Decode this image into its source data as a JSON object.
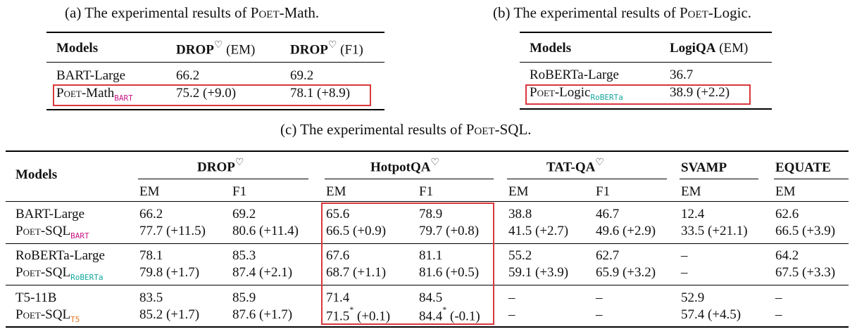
{
  "colors": {
    "highlight_box": "#d9373c",
    "bart_sub": "#c71585",
    "roberta_sub": "#12a79d",
    "t5_sub": "#e87722"
  },
  "caption_a": {
    "prefix": "(a) The experimental results of ",
    "poet": "Poet",
    "suffix": "-Math."
  },
  "caption_b": {
    "prefix": "(b) The experimental results of ",
    "poet": "Poet",
    "suffix": "-Logic."
  },
  "caption_c": {
    "prefix": "(c) The experimental results of ",
    "poet": "Poet",
    "suffix": "-SQL."
  },
  "heart": "♡",
  "table_a": {
    "h_models": "Models",
    "h_drop": "DROP",
    "h_em": " (EM)",
    "h_f1": " (F1)",
    "rows": [
      {
        "model": "BART-Large",
        "em": "66.2",
        "f1": "69.2"
      },
      {
        "poet": "Poet",
        "name": "-Math",
        "sub": "BART",
        "em": "75.2 (+9.0)",
        "f1": "78.1 (+8.9)"
      }
    ]
  },
  "table_b": {
    "h_models": "Models",
    "h_logiqa": "LogiQA",
    "h_em": " (EM)",
    "rows": [
      {
        "model": "RoBERTa-Large",
        "em": "36.7"
      },
      {
        "poet": "Poet",
        "name": "-Logic",
        "sub": "RoBERTa",
        "em": "38.9 (+2.2)"
      }
    ]
  },
  "table_c": {
    "h_models": "Models",
    "groups": [
      "DROP",
      "HotpotQA",
      "TAT-QA",
      "SVAMP",
      "EQUATE"
    ],
    "sub_em": "EM",
    "sub_f1": "F1",
    "poet": "Poet",
    "name": "-SQL",
    "blocks": [
      {
        "base": "BART-Large",
        "sub": "BART",
        "base_vals": [
          "66.2",
          "69.2",
          "65.6",
          "78.9",
          "38.8",
          "46.7",
          "12.4",
          "62.6"
        ],
        "poet_vals": [
          "77.7 (+11.5)",
          "80.6 (+11.4)",
          "66.5 (+0.9)",
          "79.7 (+0.8)",
          "41.5 (+2.7)",
          "49.6 (+2.9)",
          "33.5 (+21.1)",
          "66.5 (+3.9)"
        ]
      },
      {
        "base": "RoBERTa-Large",
        "sub": "RoBERTa",
        "base_vals": [
          "78.1",
          "85.3",
          "67.6",
          "81.1",
          "55.2",
          "62.7",
          "–",
          "64.2"
        ],
        "poet_vals": [
          "79.8 (+1.7)",
          "87.4 (+2.1)",
          "68.7 (+1.1)",
          "81.6 (+0.5)",
          "59.1 (+3.9)",
          "65.9 (+3.2)",
          "–",
          "67.5 (+3.3)"
        ]
      },
      {
        "base": "T5-11B",
        "sub": "T5",
        "base_vals": [
          "83.5",
          "85.9",
          "71.4",
          "84.5",
          "–",
          "–",
          "52.9",
          "–"
        ],
        "poet_vals": [
          "85.2 (+1.7)",
          "87.6 (+1.7)",
          "71.5",
          "84.4",
          "–",
          "–",
          "57.4 (+4.5)",
          "–"
        ],
        "star": "*",
        "hotpot_em_delta": " (+0.1)",
        "hotpot_f1_delta": " (-0.1)"
      }
    ]
  }
}
